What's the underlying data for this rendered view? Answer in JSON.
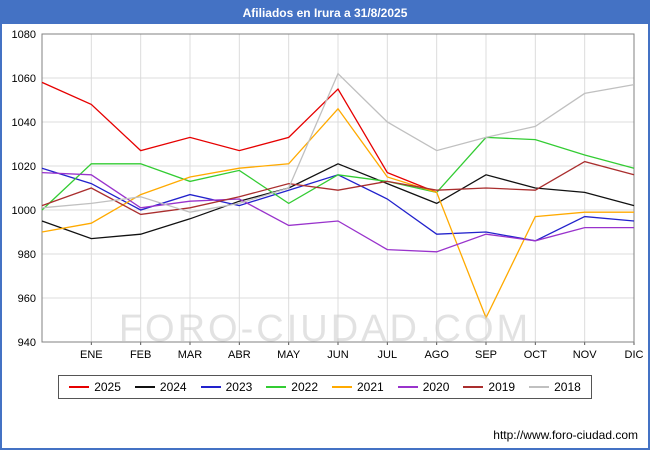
{
  "header": {
    "title": "Afiliados en Irura a 31/8/2025"
  },
  "watermark": {
    "text": "FORO-CIUDAD.COM"
  },
  "footer": {
    "url": "http://www.foro-ciudad.com"
  },
  "colors": {
    "header_bg": "#4472c4",
    "frame_border": "#4472c4",
    "grid": "#dcdcdc",
    "plot_border": "#808080",
    "watermark": "#cccccc"
  },
  "chart_data": {
    "type": "line",
    "title": "Afiliados en Irura a 31/8/2025",
    "xlabel": "",
    "ylabel": "",
    "categories": [
      "ENE",
      "FEB",
      "MAR",
      "ABR",
      "MAY",
      "JUN",
      "JUL",
      "AGO",
      "SEP",
      "OCT",
      "NOV",
      "DIC"
    ],
    "ylim": [
      940,
      1080
    ],
    "ytick_step": 20,
    "grid": true,
    "legend_position": "bottom",
    "note": "each series also has a starting value drawn on the left axis (previous December)",
    "series": [
      {
        "name": "2025",
        "color": "#e60000",
        "axis_start": 1058,
        "values": [
          1048,
          1027,
          1033,
          1027,
          1033,
          1055,
          1017,
          1008,
          null,
          null,
          null,
          null
        ]
      },
      {
        "name": "2024",
        "color": "#111111",
        "axis_start": 995,
        "values": [
          987,
          989,
          996,
          1004,
          1010,
          1021,
          1012,
          1003,
          1016,
          1010,
          1008,
          1002
        ]
      },
      {
        "name": "2023",
        "color": "#2222cc",
        "axis_start": 1019,
        "values": [
          1012,
          1000,
          1007,
          1002,
          1009,
          1016,
          1005,
          989,
          990,
          986,
          997,
          995
        ]
      },
      {
        "name": "2022",
        "color": "#33cc33",
        "axis_start": 1000,
        "values": [
          1021,
          1021,
          1013,
          1018,
          1003,
          1016,
          1013,
          1008,
          1033,
          1032,
          1025,
          1019
        ]
      },
      {
        "name": "2021",
        "color": "#ffaa00",
        "axis_start": 990,
        "values": [
          994,
          1007,
          1015,
          1019,
          1021,
          1046,
          1015,
          1008,
          951,
          997,
          999,
          999
        ]
      },
      {
        "name": "2020",
        "color": "#9933cc",
        "axis_start": 1017,
        "values": [
          1016,
          1001,
          1004,
          1005,
          993,
          995,
          982,
          981,
          989,
          986,
          992,
          992
        ]
      },
      {
        "name": "2019",
        "color": "#aa2e2e",
        "axis_start": 1002,
        "values": [
          1010,
          998,
          1001,
          1006,
          1012,
          1009,
          1013,
          1009,
          1010,
          1009,
          1022,
          1016
        ]
      },
      {
        "name": "2018",
        "color": "#c0c0c0",
        "axis_start": 1001,
        "values": [
          1003,
          1006,
          999,
          1003,
          1010,
          1062,
          1040,
          1027,
          1033,
          1038,
          1053,
          1057
        ]
      }
    ]
  }
}
